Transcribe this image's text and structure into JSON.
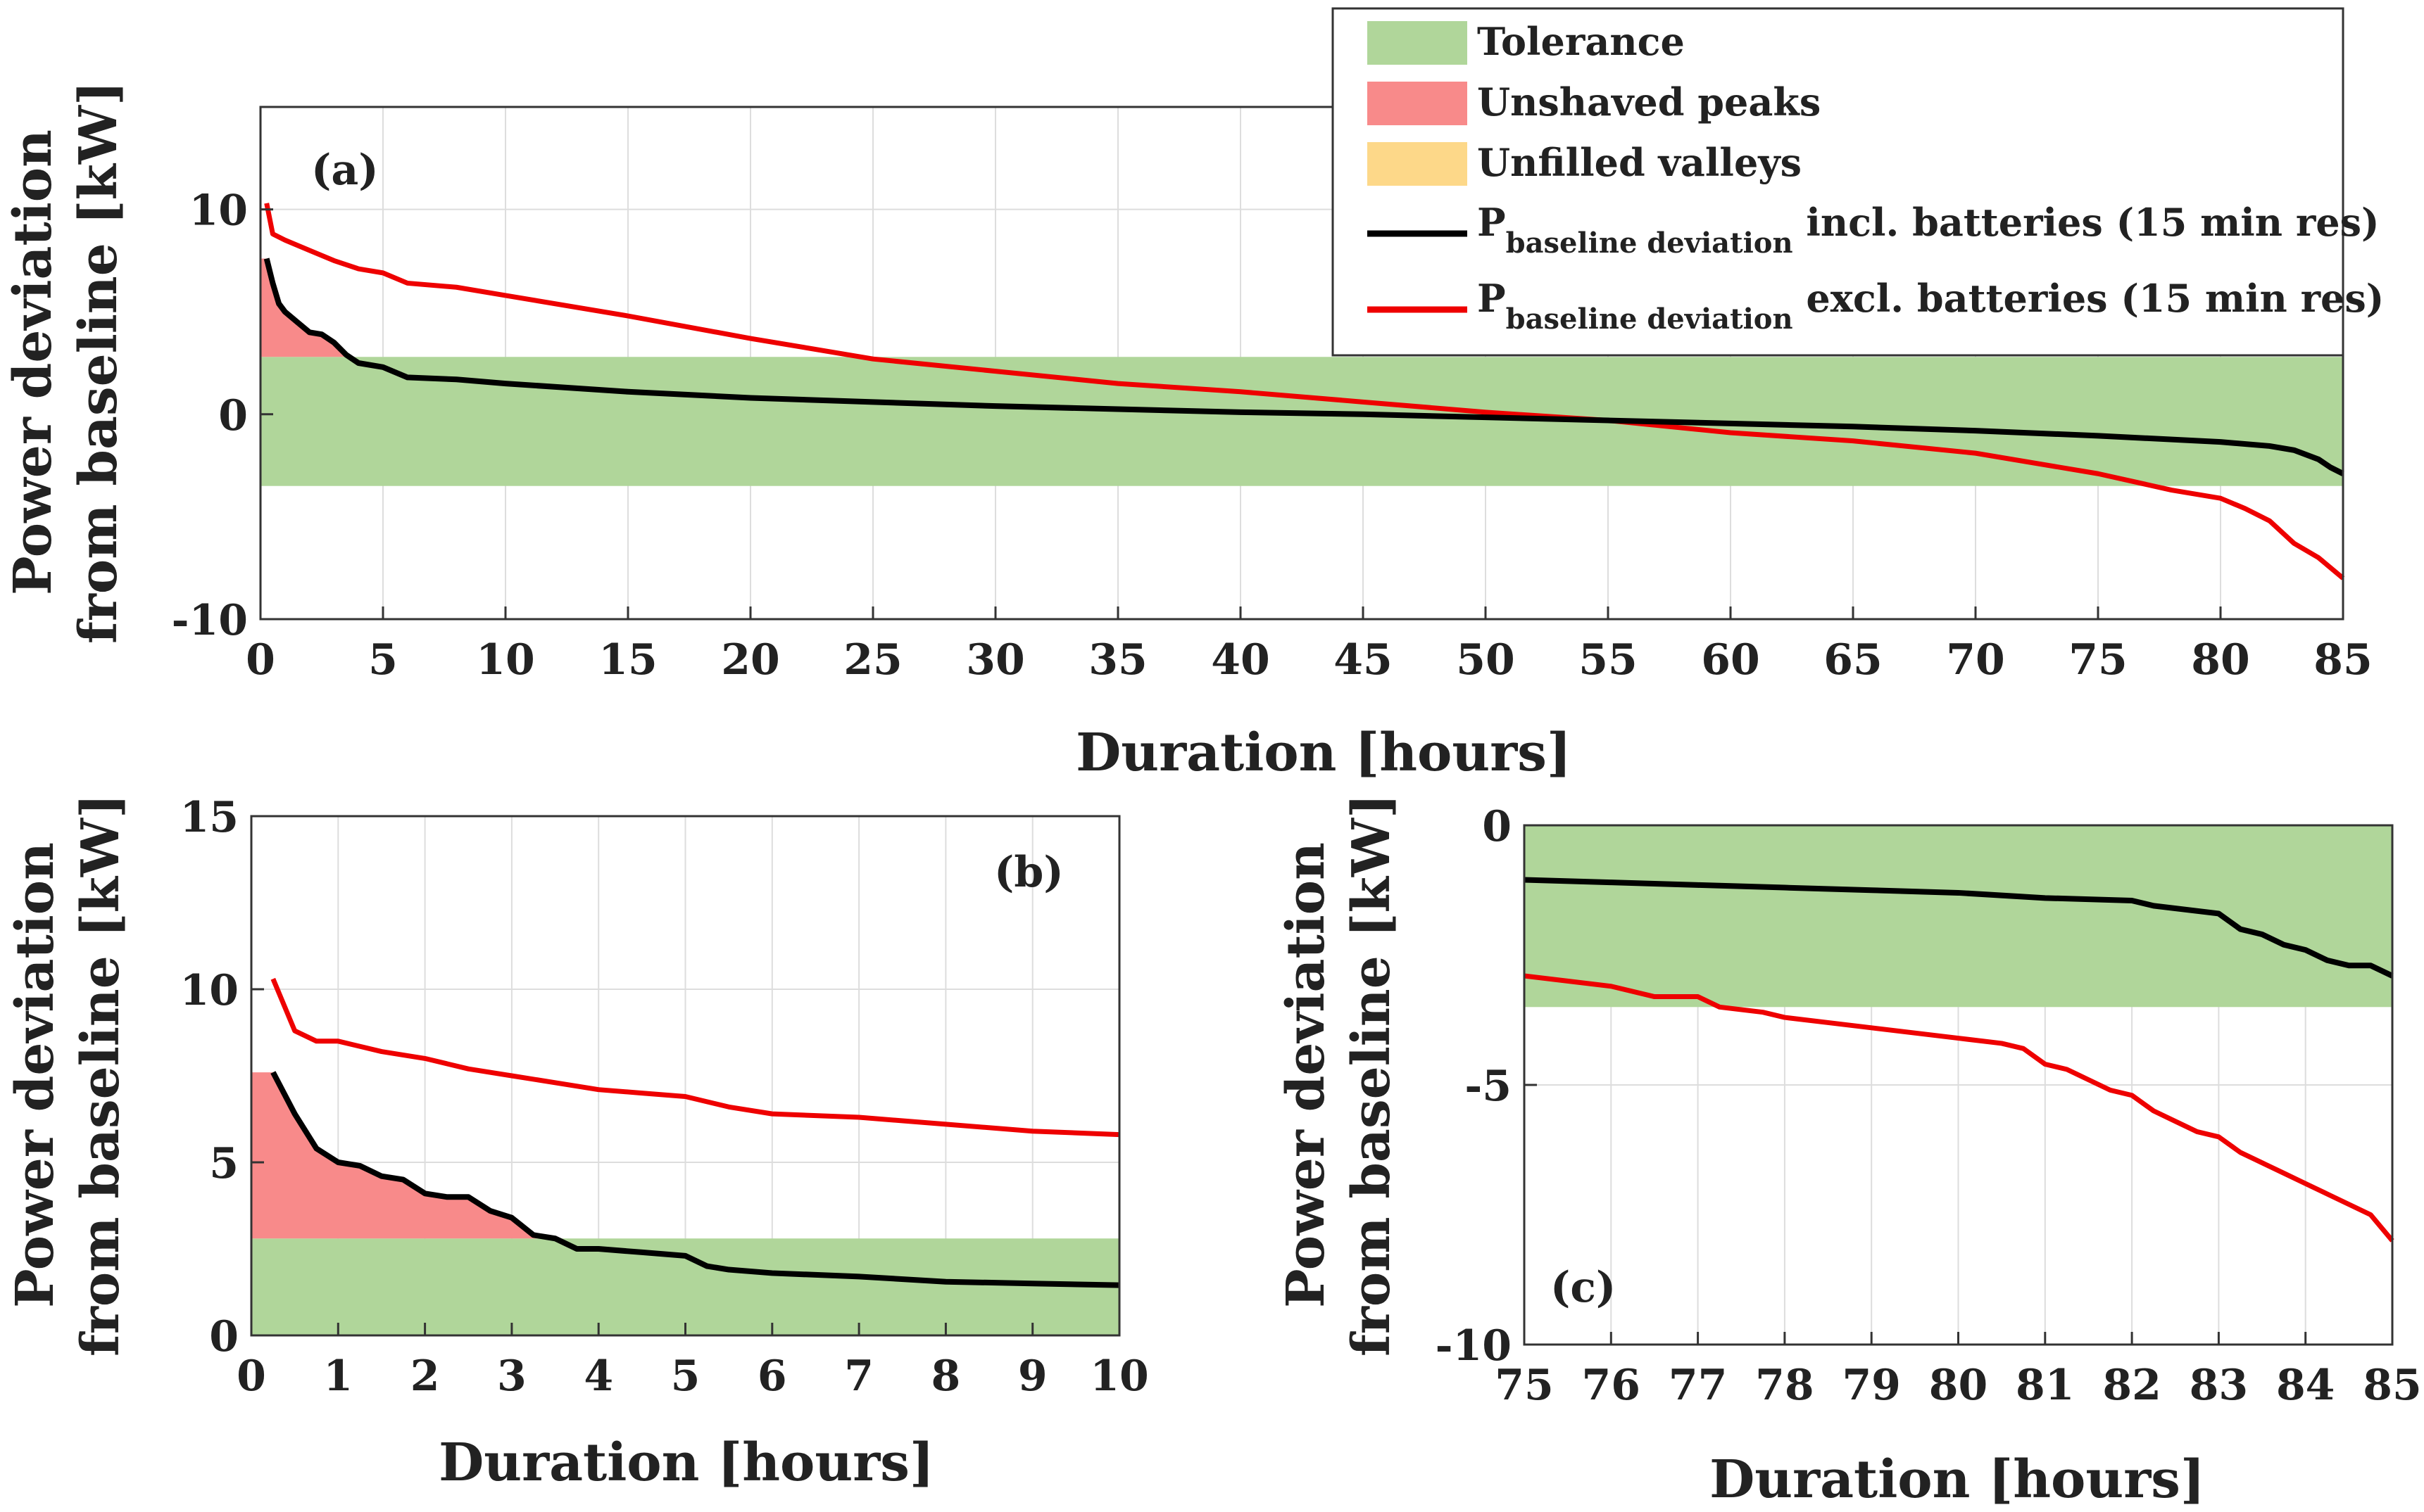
{
  "colors": {
    "tolerance": "#b0d69a",
    "unshaved": "#f88a8a",
    "unfilled": "#fdd889",
    "incl": "#000000",
    "excl": "#ee0000",
    "grid": "#dddddd",
    "axis": "#333333"
  },
  "legend": {
    "tolerance": "Tolerance",
    "unshaved": "Unshaved peaks",
    "unfilled": "Unfilled valleys",
    "incl_main": "P",
    "incl_sub": "baseline deviation",
    "incl_rest": " incl. batteries (15 min res)",
    "excl_main": "P",
    "excl_sub": "baseline deviation",
    "excl_rest": " excl. batteries (15 min res)"
  },
  "chart_data": [
    {
      "id": "a",
      "type": "line",
      "panel_label": "(a)",
      "xlabel": "Duration [hours]",
      "ylabel": [
        "Power deviation",
        "from baseline [kW]"
      ],
      "xlim": [
        0,
        85
      ],
      "ylim": [
        -10,
        15
      ],
      "xticks": [
        0,
        5,
        10,
        15,
        20,
        25,
        30,
        35,
        40,
        45,
        50,
        55,
        60,
        65,
        70,
        75,
        80,
        85
      ],
      "yticks": [
        -10,
        0,
        10
      ],
      "tolerance": [
        -3.5,
        2.8
      ],
      "series": [
        {
          "name": "P baseline deviation incl. batteries (15 min res)",
          "key": "incl",
          "x": [
            0.25,
            0.5,
            0.75,
            1,
            1.5,
            2,
            2.5,
            3,
            3.5,
            4,
            5,
            6,
            8,
            10,
            15,
            20,
            25,
            30,
            35,
            40,
            45,
            50,
            55,
            60,
            65,
            70,
            75,
            80,
            82,
            83,
            84,
            84.5,
            85
          ],
          "values": [
            7.6,
            6.4,
            5.4,
            5.0,
            4.5,
            4.0,
            3.9,
            3.5,
            2.9,
            2.5,
            2.3,
            1.8,
            1.7,
            1.5,
            1.1,
            0.8,
            0.6,
            0.4,
            0.25,
            0.1,
            0.0,
            -0.15,
            -0.3,
            -0.45,
            -0.6,
            -0.8,
            -1.05,
            -1.35,
            -1.55,
            -1.75,
            -2.2,
            -2.6,
            -2.9
          ]
        },
        {
          "name": "P baseline deviation excl. batteries (15 min res)",
          "key": "excl",
          "x": [
            0.25,
            0.5,
            1,
            2,
            3,
            4,
            5,
            6,
            8,
            10,
            15,
            20,
            25,
            30,
            35,
            40,
            45,
            50,
            55,
            60,
            65,
            70,
            75,
            78,
            80,
            81,
            82,
            83,
            84,
            85
          ],
          "values": [
            10.3,
            8.8,
            8.5,
            8.0,
            7.5,
            7.1,
            6.9,
            6.4,
            6.2,
            5.8,
            4.8,
            3.7,
            2.7,
            2.1,
            1.5,
            1.1,
            0.6,
            0.1,
            -0.3,
            -0.9,
            -1.3,
            -1.9,
            -2.9,
            -3.7,
            -4.1,
            -4.6,
            -5.2,
            -6.3,
            -7.0,
            -8.0
          ]
        }
      ]
    },
    {
      "id": "b",
      "type": "line",
      "panel_label": "(b)",
      "xlabel": "Duration [hours]",
      "ylabel": [
        "Power deviation",
        "from baseline [kW]"
      ],
      "xlim": [
        0,
        10
      ],
      "ylim": [
        0,
        15
      ],
      "xticks": [
        0,
        1,
        2,
        3,
        4,
        5,
        6,
        7,
        8,
        9,
        10
      ],
      "yticks": [
        0,
        5,
        10,
        15
      ],
      "tolerance": [
        0,
        2.8
      ],
      "series": [
        {
          "name": "P baseline deviation incl. batteries (15 min res)",
          "key": "incl",
          "x": [
            0.25,
            0.5,
            0.75,
            1,
            1.25,
            1.5,
            1.75,
            2,
            2.25,
            2.5,
            2.75,
            3,
            3.25,
            3.5,
            3.75,
            4,
            4.5,
            5,
            5.25,
            5.5,
            6,
            7,
            8,
            9,
            10
          ],
          "values": [
            7.6,
            6.4,
            5.4,
            5.0,
            4.9,
            4.6,
            4.5,
            4.1,
            4.0,
            4.0,
            3.6,
            3.4,
            2.9,
            2.8,
            2.5,
            2.5,
            2.4,
            2.3,
            2.0,
            1.9,
            1.8,
            1.7,
            1.55,
            1.5,
            1.45
          ]
        },
        {
          "name": "P baseline deviation excl. batteries (15 min res)",
          "key": "excl",
          "x": [
            0.25,
            0.5,
            0.75,
            1,
            1.5,
            2,
            2.5,
            3,
            3.5,
            4,
            4.5,
            5,
            5.5,
            6,
            7,
            8,
            9,
            10
          ],
          "values": [
            10.3,
            8.8,
            8.5,
            8.5,
            8.2,
            8.0,
            7.7,
            7.5,
            7.3,
            7.1,
            7.0,
            6.9,
            6.6,
            6.4,
            6.3,
            6.1,
            5.9,
            5.8
          ]
        }
      ]
    },
    {
      "id": "c",
      "type": "line",
      "panel_label": "(c)",
      "xlabel": "Duration [hours]",
      "ylabel": [
        "Power deviation",
        "from baseline [kW]"
      ],
      "xlim": [
        75,
        85
      ],
      "ylim": [
        -10,
        0
      ],
      "xticks": [
        75,
        76,
        77,
        78,
        79,
        80,
        81,
        82,
        83,
        84,
        85
      ],
      "yticks": [
        -10,
        -5,
        0
      ],
      "tolerance": [
        -3.5,
        0
      ],
      "series": [
        {
          "name": "P baseline deviation incl. batteries (15 min res)",
          "key": "incl",
          "x": [
            75,
            76,
            77,
            78,
            79,
            80,
            81,
            82,
            82.25,
            83,
            83.25,
            83.5,
            83.75,
            84,
            84.25,
            84.5,
            84.75,
            85
          ],
          "values": [
            -1.05,
            -1.1,
            -1.15,
            -1.2,
            -1.25,
            -1.3,
            -1.4,
            -1.45,
            -1.55,
            -1.7,
            -2.0,
            -2.1,
            -2.3,
            -2.4,
            -2.6,
            -2.7,
            -2.7,
            -2.9
          ]
        },
        {
          "name": "P baseline deviation excl. batteries (15 min res)",
          "key": "excl",
          "x": [
            75,
            75.5,
            76,
            76.5,
            77,
            77.25,
            77.75,
            78,
            78.5,
            79,
            79.5,
            80,
            80.5,
            80.75,
            81,
            81.25,
            81.5,
            81.75,
            82,
            82.25,
            82.5,
            82.75,
            83,
            83.25,
            83.5,
            83.75,
            84,
            84.25,
            84.5,
            84.75,
            85
          ],
          "values": [
            -2.9,
            -3.0,
            -3.1,
            -3.3,
            -3.3,
            -3.5,
            -3.6,
            -3.7,
            -3.8,
            -3.9,
            -4.0,
            -4.1,
            -4.2,
            -4.3,
            -4.6,
            -4.7,
            -4.9,
            -5.1,
            -5.2,
            -5.5,
            -5.7,
            -5.9,
            -6.0,
            -6.3,
            -6.5,
            -6.7,
            -6.9,
            -7.1,
            -7.3,
            -7.5,
            -8.0
          ]
        }
      ]
    }
  ]
}
